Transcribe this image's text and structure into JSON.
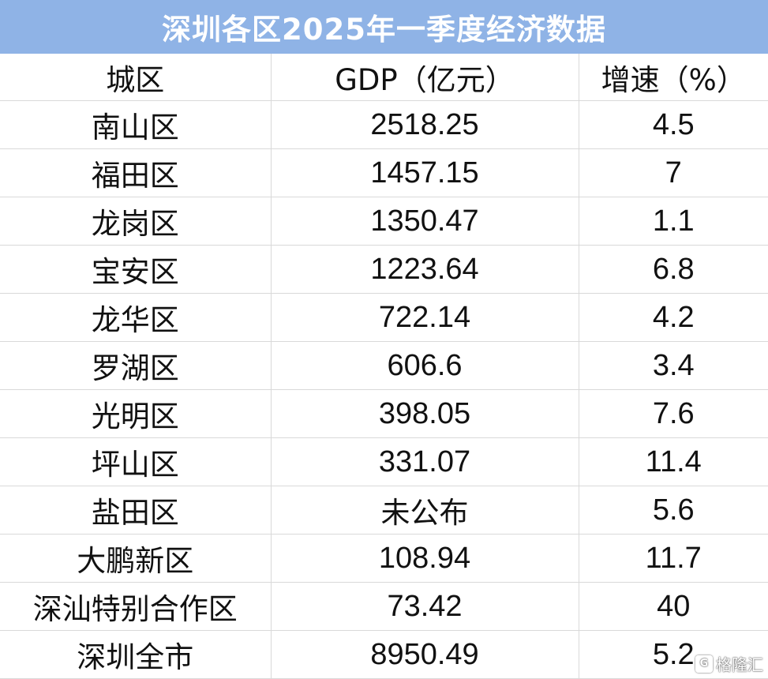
{
  "title": "深圳各区2025年一季度经济数据",
  "headers": {
    "district": "城区",
    "gdp": "GDP（亿元）",
    "growth": "增速（%）"
  },
  "rows": [
    {
      "district": "南山区",
      "gdp": "2518.25",
      "growth": "4.5"
    },
    {
      "district": "福田区",
      "gdp": "1457.15",
      "growth": "7"
    },
    {
      "district": "龙岗区",
      "gdp": "1350.47",
      "growth": "1.1"
    },
    {
      "district": "宝安区",
      "gdp": "1223.64",
      "growth": "6.8"
    },
    {
      "district": "龙华区",
      "gdp": "722.14",
      "growth": "4.2"
    },
    {
      "district": "罗湖区",
      "gdp": "606.6",
      "growth": "3.4"
    },
    {
      "district": "光明区",
      "gdp": "398.05",
      "growth": "7.6"
    },
    {
      "district": "坪山区",
      "gdp": "331.07",
      "growth": "11.4"
    },
    {
      "district": "盐田区",
      "gdp": "未公布",
      "growth": "5.6"
    },
    {
      "district": "大鹏新区",
      "gdp": "108.94",
      "growth": "11.7"
    },
    {
      "district": "深汕特别合作区",
      "gdp": "73.42",
      "growth": "40"
    },
    {
      "district": "深圳全市",
      "gdp": "8950.49",
      "growth": "5.2"
    }
  ],
  "watermark": {
    "text": "格隆汇",
    "icon": "logo-icon"
  },
  "colors": {
    "title_bg": "#8fb3e6",
    "title_text": "#ffffff",
    "grid": "#d9d9d9"
  }
}
